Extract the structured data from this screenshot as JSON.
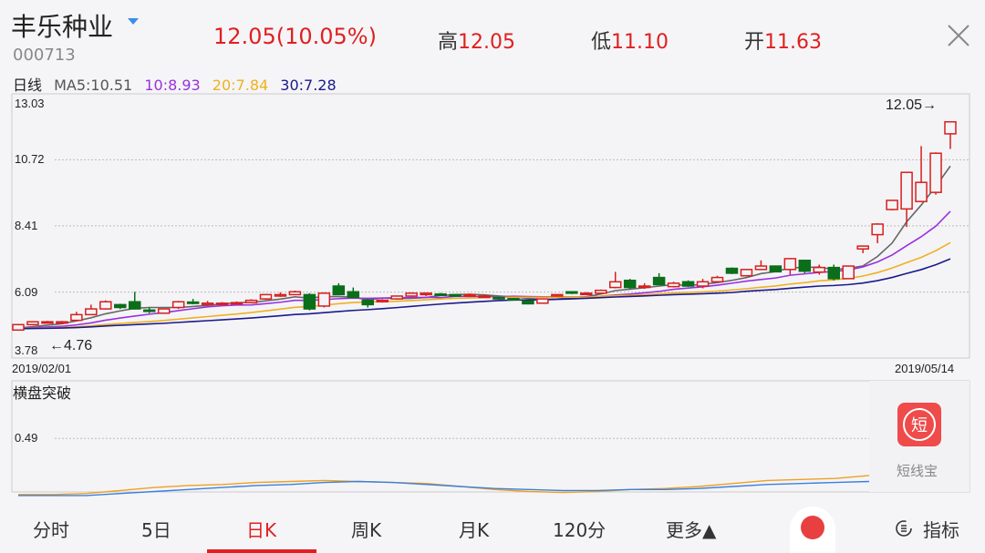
{
  "header": {
    "stock_name": "丰乐种业",
    "stock_code": "000713",
    "price_change": "12.05(10.05%)",
    "high_label": "高",
    "high": "12.05",
    "low_label": "低",
    "low": "11.10",
    "open_label": "开",
    "open": "11.63"
  },
  "ma_legend": {
    "period": "日线",
    "ma5": "MA5:10.51",
    "ma10": "10:8.93",
    "ma20": "20:7.84",
    "ma30": "30:7.28"
  },
  "colors": {
    "up": "#d81e1e",
    "down": "#0a6e1a",
    "ma5": "#666666",
    "ma10": "#9b30e0",
    "ma20": "#f0b020",
    "ma30": "#1a1a8c",
    "indicator_a": "#f0a020",
    "indicator_b": "#3a80e0",
    "accent": "#e02020"
  },
  "chart_data": [
    {
      "type": "candlestick",
      "title": "",
      "ylim": [
        3.78,
        13.03
      ],
      "y_ticks": [
        "13.03",
        "10.72",
        "8.41",
        "6.09",
        "3.78"
      ],
      "x_start_label": "2019/02/01",
      "x_end_label": "2019/05/14",
      "max_marker": "12.05→",
      "min_marker": "←4.76",
      "ohlc": [
        [
          4.76,
          4.95,
          4.97,
          4.76
        ],
        [
          4.95,
          5.05,
          5.07,
          4.93
        ],
        [
          5.04,
          5.05,
          5.08,
          5.02
        ],
        [
          5.0,
          5.05,
          5.08,
          4.98
        ],
        [
          5.1,
          5.3,
          5.4,
          5.08
        ],
        [
          5.3,
          5.5,
          5.65,
          5.28
        ],
        [
          5.5,
          5.75,
          5.8,
          5.48
        ],
        [
          5.65,
          5.55,
          5.68,
          5.5
        ],
        [
          5.75,
          5.5,
          6.1,
          5.48
        ],
        [
          5.46,
          5.45,
          5.55,
          5.35
        ],
        [
          5.35,
          5.5,
          5.52,
          5.33
        ],
        [
          5.55,
          5.75,
          5.78,
          5.5
        ],
        [
          5.74,
          5.72,
          5.85,
          5.66
        ],
        [
          5.65,
          5.7,
          5.78,
          5.62
        ],
        [
          5.69,
          5.7,
          5.74,
          5.66
        ],
        [
          5.7,
          5.72,
          5.76,
          5.68
        ],
        [
          5.72,
          5.8,
          5.84,
          5.7
        ],
        [
          5.85,
          6.0,
          6.02,
          5.82
        ],
        [
          5.95,
          6.0,
          6.08,
          5.92
        ],
        [
          6.0,
          6.1,
          6.14,
          5.98
        ],
        [
          6.0,
          5.5,
          6.05,
          5.45
        ],
        [
          5.6,
          6.05,
          6.08,
          5.55
        ],
        [
          6.3,
          6.0,
          6.4,
          5.98
        ],
        [
          6.1,
          5.9,
          6.25,
          5.88
        ],
        [
          5.8,
          5.65,
          5.85,
          5.55
        ],
        [
          5.75,
          5.8,
          5.84,
          5.72
        ],
        [
          5.85,
          5.95,
          5.97,
          5.82
        ],
        [
          5.95,
          6.05,
          6.08,
          5.92
        ],
        [
          6.0,
          6.05,
          6.08,
          5.95
        ],
        [
          6.02,
          6.0,
          6.06,
          5.96
        ],
        [
          6.0,
          5.95,
          6.02,
          5.92
        ],
        [
          6.0,
          6.0,
          6.04,
          5.95
        ],
        [
          5.95,
          5.95,
          6.0,
          5.9
        ],
        [
          5.9,
          5.85,
          5.93,
          5.82
        ],
        [
          5.86,
          5.85,
          5.88,
          5.8
        ],
        [
          5.78,
          5.68,
          5.8,
          5.66
        ],
        [
          5.7,
          5.85,
          5.87,
          5.68
        ],
        [
          5.95,
          6.0,
          6.02,
          5.93
        ],
        [
          6.1,
          6.05,
          6.12,
          6.02
        ],
        [
          6.05,
          6.05,
          6.09,
          6.02
        ],
        [
          6.05,
          6.15,
          6.18,
          6.03
        ],
        [
          6.25,
          6.45,
          6.8,
          6.22
        ],
        [
          6.5,
          6.25,
          6.55,
          6.2
        ],
        [
          6.3,
          6.3,
          6.4,
          6.2
        ],
        [
          6.6,
          6.35,
          6.75,
          6.33
        ],
        [
          6.28,
          6.4,
          6.45,
          6.25
        ],
        [
          6.45,
          6.3,
          6.5,
          6.27
        ],
        [
          6.3,
          6.45,
          6.55,
          6.22
        ],
        [
          6.45,
          6.6,
          6.66,
          6.43
        ],
        [
          6.92,
          6.75,
          6.95,
          6.72
        ],
        [
          6.66,
          6.88,
          6.9,
          6.64
        ],
        [
          6.88,
          7.0,
          7.2,
          6.86
        ],
        [
          7.0,
          6.8,
          7.02,
          6.78
        ],
        [
          6.88,
          7.26,
          7.28,
          6.7
        ],
        [
          7.2,
          6.82,
          7.22,
          6.75
        ],
        [
          6.79,
          6.95,
          7.05,
          6.7
        ],
        [
          6.95,
          6.56,
          7.05,
          6.5
        ],
        [
          6.56,
          7.0,
          7.02,
          6.55
        ],
        [
          7.6,
          7.7,
          7.72,
          7.45
        ],
        [
          8.1,
          8.47,
          8.5,
          7.8
        ],
        [
          8.98,
          9.3,
          9.32,
          8.95
        ],
        [
          9.0,
          10.28,
          10.3,
          8.37
        ],
        [
          9.26,
          9.93,
          11.2,
          9.24
        ],
        [
          9.58,
          10.95,
          10.98,
          9.5
        ],
        [
          11.63,
          12.05,
          12.05,
          11.1
        ]
      ]
    },
    {
      "type": "line",
      "title": "横盘突破",
      "y_ticks": [
        "0.49"
      ],
      "ylim": [
        0.2,
        0.55
      ],
      "series": [
        {
          "values": [
            0.21,
            0.21,
            0.215,
            0.23,
            0.245,
            0.255,
            0.26,
            0.27,
            0.275,
            0.28,
            0.275,
            0.27,
            0.265,
            0.25,
            0.235,
            0.225,
            0.22,
            0.225,
            0.235,
            0.24,
            0.25,
            0.265,
            0.28,
            0.285,
            0.29,
            0.305
          ]
        },
        {
          "values": [
            0.205,
            0.205,
            0.205,
            0.215,
            0.225,
            0.235,
            0.245,
            0.255,
            0.26,
            0.27,
            0.275,
            0.27,
            0.26,
            0.25,
            0.24,
            0.235,
            0.23,
            0.23,
            0.235,
            0.235,
            0.24,
            0.25,
            0.26,
            0.265,
            0.27,
            0.275
          ]
        }
      ]
    }
  ],
  "widget": {
    "icon_char": "短",
    "label": "短线宝"
  },
  "tabs": [
    {
      "label": "分时"
    },
    {
      "label": "5日"
    },
    {
      "label": "日K"
    },
    {
      "label": "周K"
    },
    {
      "label": "月K"
    },
    {
      "label": "120分"
    },
    {
      "label": "更多▲"
    },
    {
      "label": "指标"
    }
  ]
}
